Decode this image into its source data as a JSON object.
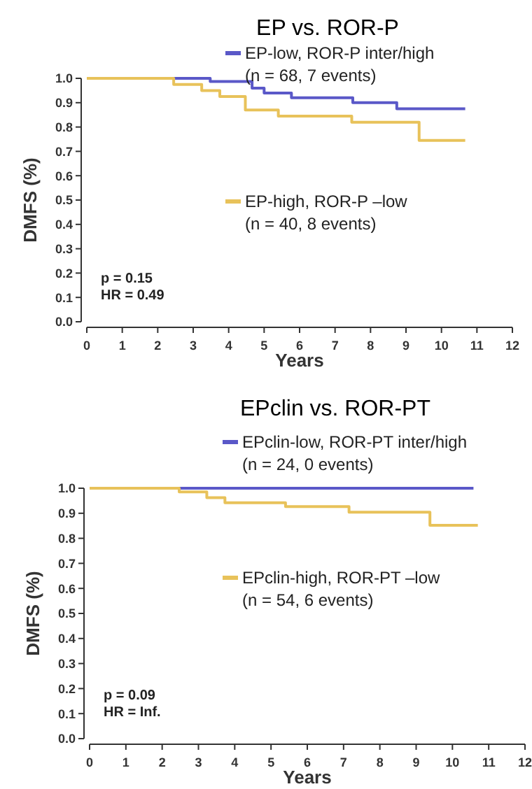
{
  "chart_data": [
    {
      "type": "step",
      "title": "EP vs. ROR-P",
      "xlabel": "Years",
      "ylabel": "DMFS (%)",
      "xlim": [
        0,
        12
      ],
      "xticks": [
        0,
        1,
        2,
        3,
        4,
        5,
        6,
        7,
        8,
        9,
        10,
        11,
        12
      ],
      "ylim": [
        0,
        1
      ],
      "yticks": [
        {
          "value": 0,
          "label": "0.0"
        },
        {
          "value": 0.1,
          "label": "0.1"
        },
        {
          "value": 0.2,
          "label": "0.2"
        },
        {
          "value": 0.3,
          "label": "0.3"
        },
        {
          "value": 0.4,
          "label": "0.4"
        },
        {
          "value": 0.5,
          "label": "0.5"
        },
        {
          "value": 0.6,
          "label": "0.6"
        },
        {
          "value": 0.7,
          "label": "0.7"
        },
        {
          "value": 0.8,
          "label": "0.8"
        },
        {
          "value": 0.9,
          "label": "0.9"
        },
        {
          "value": 1,
          "label": "1.0"
        }
      ],
      "annotations": [
        "p = 0.15",
        "HR = 0.49"
      ],
      "legend": "right",
      "series": [
        {
          "name": "EP-low, ROR-P inter/high (n = 68, 7 events)",
          "color": "#5a58c8",
          "x": [
            0,
            3.48,
            4.66,
            5.0,
            5.77,
            7.5,
            8.74,
            10.67
          ],
          "values": [
            1,
            0.987,
            0.96,
            0.94,
            0.92,
            0.9,
            0.875,
            0.875
          ]
        },
        {
          "name": "EP-high, ROR-P –low (n = 40, 8 events)",
          "color": "#e8c25a",
          "x": [
            0,
            2.45,
            3.24,
            3.75,
            4.47,
            5.4,
            7.47,
            9.37,
            10.67
          ],
          "values": [
            1,
            0.975,
            0.95,
            0.925,
            0.87,
            0.845,
            0.82,
            0.745,
            0.745
          ]
        }
      ]
    },
    {
      "type": "step",
      "title": "EPclin vs. ROR-PT",
      "xlabel": "Years",
      "ylabel": "DMFS (%)",
      "xlim": [
        0,
        12
      ],
      "xticks": [
        0,
        1,
        2,
        3,
        4,
        5,
        6,
        7,
        8,
        9,
        10,
        11,
        12
      ],
      "ylim": [
        0,
        1
      ],
      "yticks": [
        {
          "value": 0,
          "label": "0.0"
        },
        {
          "value": 0.1,
          "label": "0.1"
        },
        {
          "value": 0.2,
          "label": "0.2"
        },
        {
          "value": 0.3,
          "label": "0.3"
        },
        {
          "value": 0.4,
          "label": "0.4"
        },
        {
          "value": 0.5,
          "label": "0.5"
        },
        {
          "value": 0.6,
          "label": "0.6"
        },
        {
          "value": 0.7,
          "label": "0.7"
        },
        {
          "value": 0.8,
          "label": "0.8"
        },
        {
          "value": 0.9,
          "label": "0.9"
        },
        {
          "value": 1,
          "label": "1.0"
        }
      ],
      "annotations": [
        "p = 0.09",
        "HR = Inf."
      ],
      "legend": "right",
      "series": [
        {
          "name": "EPclin-low, ROR-PT inter/high (n = 24, 0 events)",
          "color": "#5a58c8",
          "x": [
            0,
            10.58
          ],
          "values": [
            1,
            1
          ]
        },
        {
          "name": "EPclin-high, ROR-PT –low (n = 54, 6 events)",
          "color": "#e8c25a",
          "x": [
            0,
            2.47,
            3.23,
            3.73,
            5.4,
            7.15,
            9.38,
            10.7
          ],
          "values": [
            1,
            0.985,
            0.962,
            0.942,
            0.927,
            0.904,
            0.852,
            0.852
          ]
        }
      ]
    }
  ]
}
